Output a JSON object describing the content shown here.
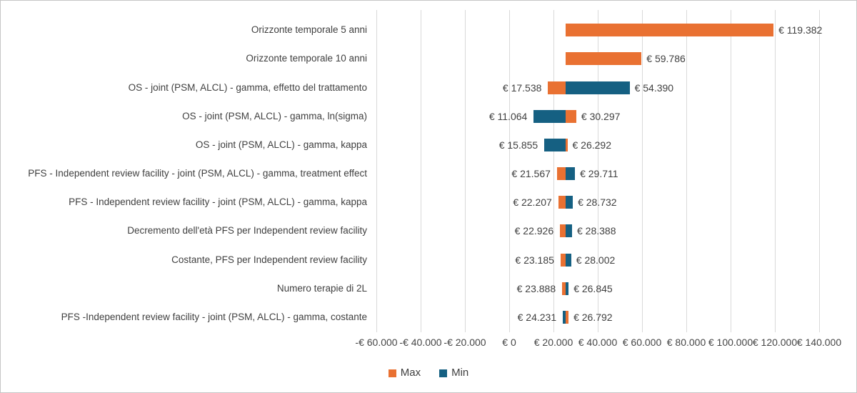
{
  "chart_data": {
    "type": "bar",
    "variant": "tornado",
    "orientation": "horizontal",
    "title": "",
    "xlabel": "",
    "ylabel": "",
    "unit": "EUR",
    "grid": true,
    "xlim": [
      -60000,
      140000
    ],
    "x_tick_step": 20000,
    "x_tick_labels": [
      "-€ 60.000",
      "-€ 40.000",
      "-€ 20.000",
      "€ 0",
      "€ 20.000",
      "€ 40.000",
      "€ 60.000",
      "€ 80.000",
      "€ 100.000",
      "€ 120.000",
      "€ 140.000"
    ],
    "pivot_value_estimate": 25500,
    "colors": {
      "max": "#E97132",
      "min": "#156082"
    },
    "legend": {
      "position": "bottom",
      "items": [
        {
          "label": "Max",
          "color": "#E97132"
        },
        {
          "label": "Min",
          "color": "#156082"
        }
      ]
    },
    "rows": [
      {
        "category": "Orizzonte temporale 5 anni",
        "max": 119382,
        "min": null,
        "left_label": null,
        "right_label": "€ 119.382"
      },
      {
        "category": "Orizzonte temporale 10 anni",
        "max": 59786,
        "min": null,
        "left_label": null,
        "right_label": "€ 59.786"
      },
      {
        "category": "OS - joint (PSM, ALCL) - gamma, effetto del trattamento",
        "max": 17538,
        "min": 54390,
        "left_label": "€ 17.538",
        "right_label": "€ 54.390"
      },
      {
        "category": "OS - joint (PSM, ALCL) - gamma, ln(sigma)",
        "max": 30297,
        "min": 11064,
        "left_label": "€ 11.064",
        "right_label": "€ 30.297"
      },
      {
        "category": "OS - joint (PSM, ALCL) - gamma, kappa",
        "max": 26292,
        "min": 15855,
        "left_label": "€ 15.855",
        "right_label": "€ 26.292"
      },
      {
        "category": "PFS - Independent review facility  - joint (PSM, ALCL) - gamma, treatment effect",
        "max": 21567,
        "min": 29711,
        "left_label": "€ 21.567",
        "right_label": "€ 29.711"
      },
      {
        "category": "PFS - Independent review facility  - joint (PSM, ALCL) - gamma, kappa",
        "max": 22207,
        "min": 28732,
        "left_label": "€ 22.207",
        "right_label": "€ 28.732"
      },
      {
        "category": "Decremento dell'età PFS per Independent review facility",
        "max": 22926,
        "min": 28388,
        "left_label": "€ 22.926",
        "right_label": "€ 28.388"
      },
      {
        "category": "Costante, PFS per Independent review facility",
        "max": 23185,
        "min": 28002,
        "left_label": "€ 23.185",
        "right_label": "€ 28.002"
      },
      {
        "category": "Numero terapie di 2L",
        "max": 23888,
        "min": 26845,
        "left_label": "€ 23.888",
        "right_label": "€ 26.845"
      },
      {
        "category": "PFS -Independent review facility - joint (PSM, ALCL) - gamma, costante",
        "max": 26792,
        "min": 24231,
        "left_label": "€ 24.231",
        "right_label": "€ 26.792"
      }
    ]
  }
}
